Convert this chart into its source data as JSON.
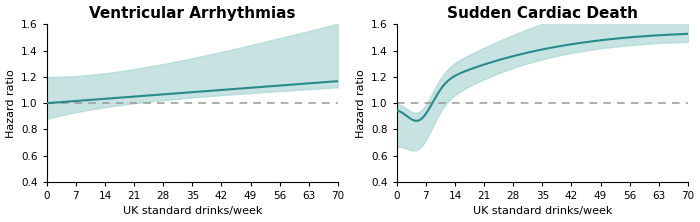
{
  "title1": "Ventricular Arrhythmias",
  "title2": "Sudden Cardiac Death",
  "xlabel": "UK standard drinks/week",
  "ylabel": "Hazard ratio",
  "ylim": [
    0.4,
    1.6
  ],
  "yticks": [
    0.4,
    0.6,
    0.8,
    1.0,
    1.2,
    1.4,
    1.6
  ],
  "xticks": [
    0,
    7,
    14,
    21,
    28,
    35,
    42,
    49,
    56,
    63,
    70
  ],
  "line_color": "#2a8a8a",
  "ci_color": "#a8d5d1",
  "dashed_color": "#999999",
  "bg_color": "#ffffff",
  "title_fontsize": 11,
  "label_fontsize": 8,
  "tick_fontsize": 7.5
}
